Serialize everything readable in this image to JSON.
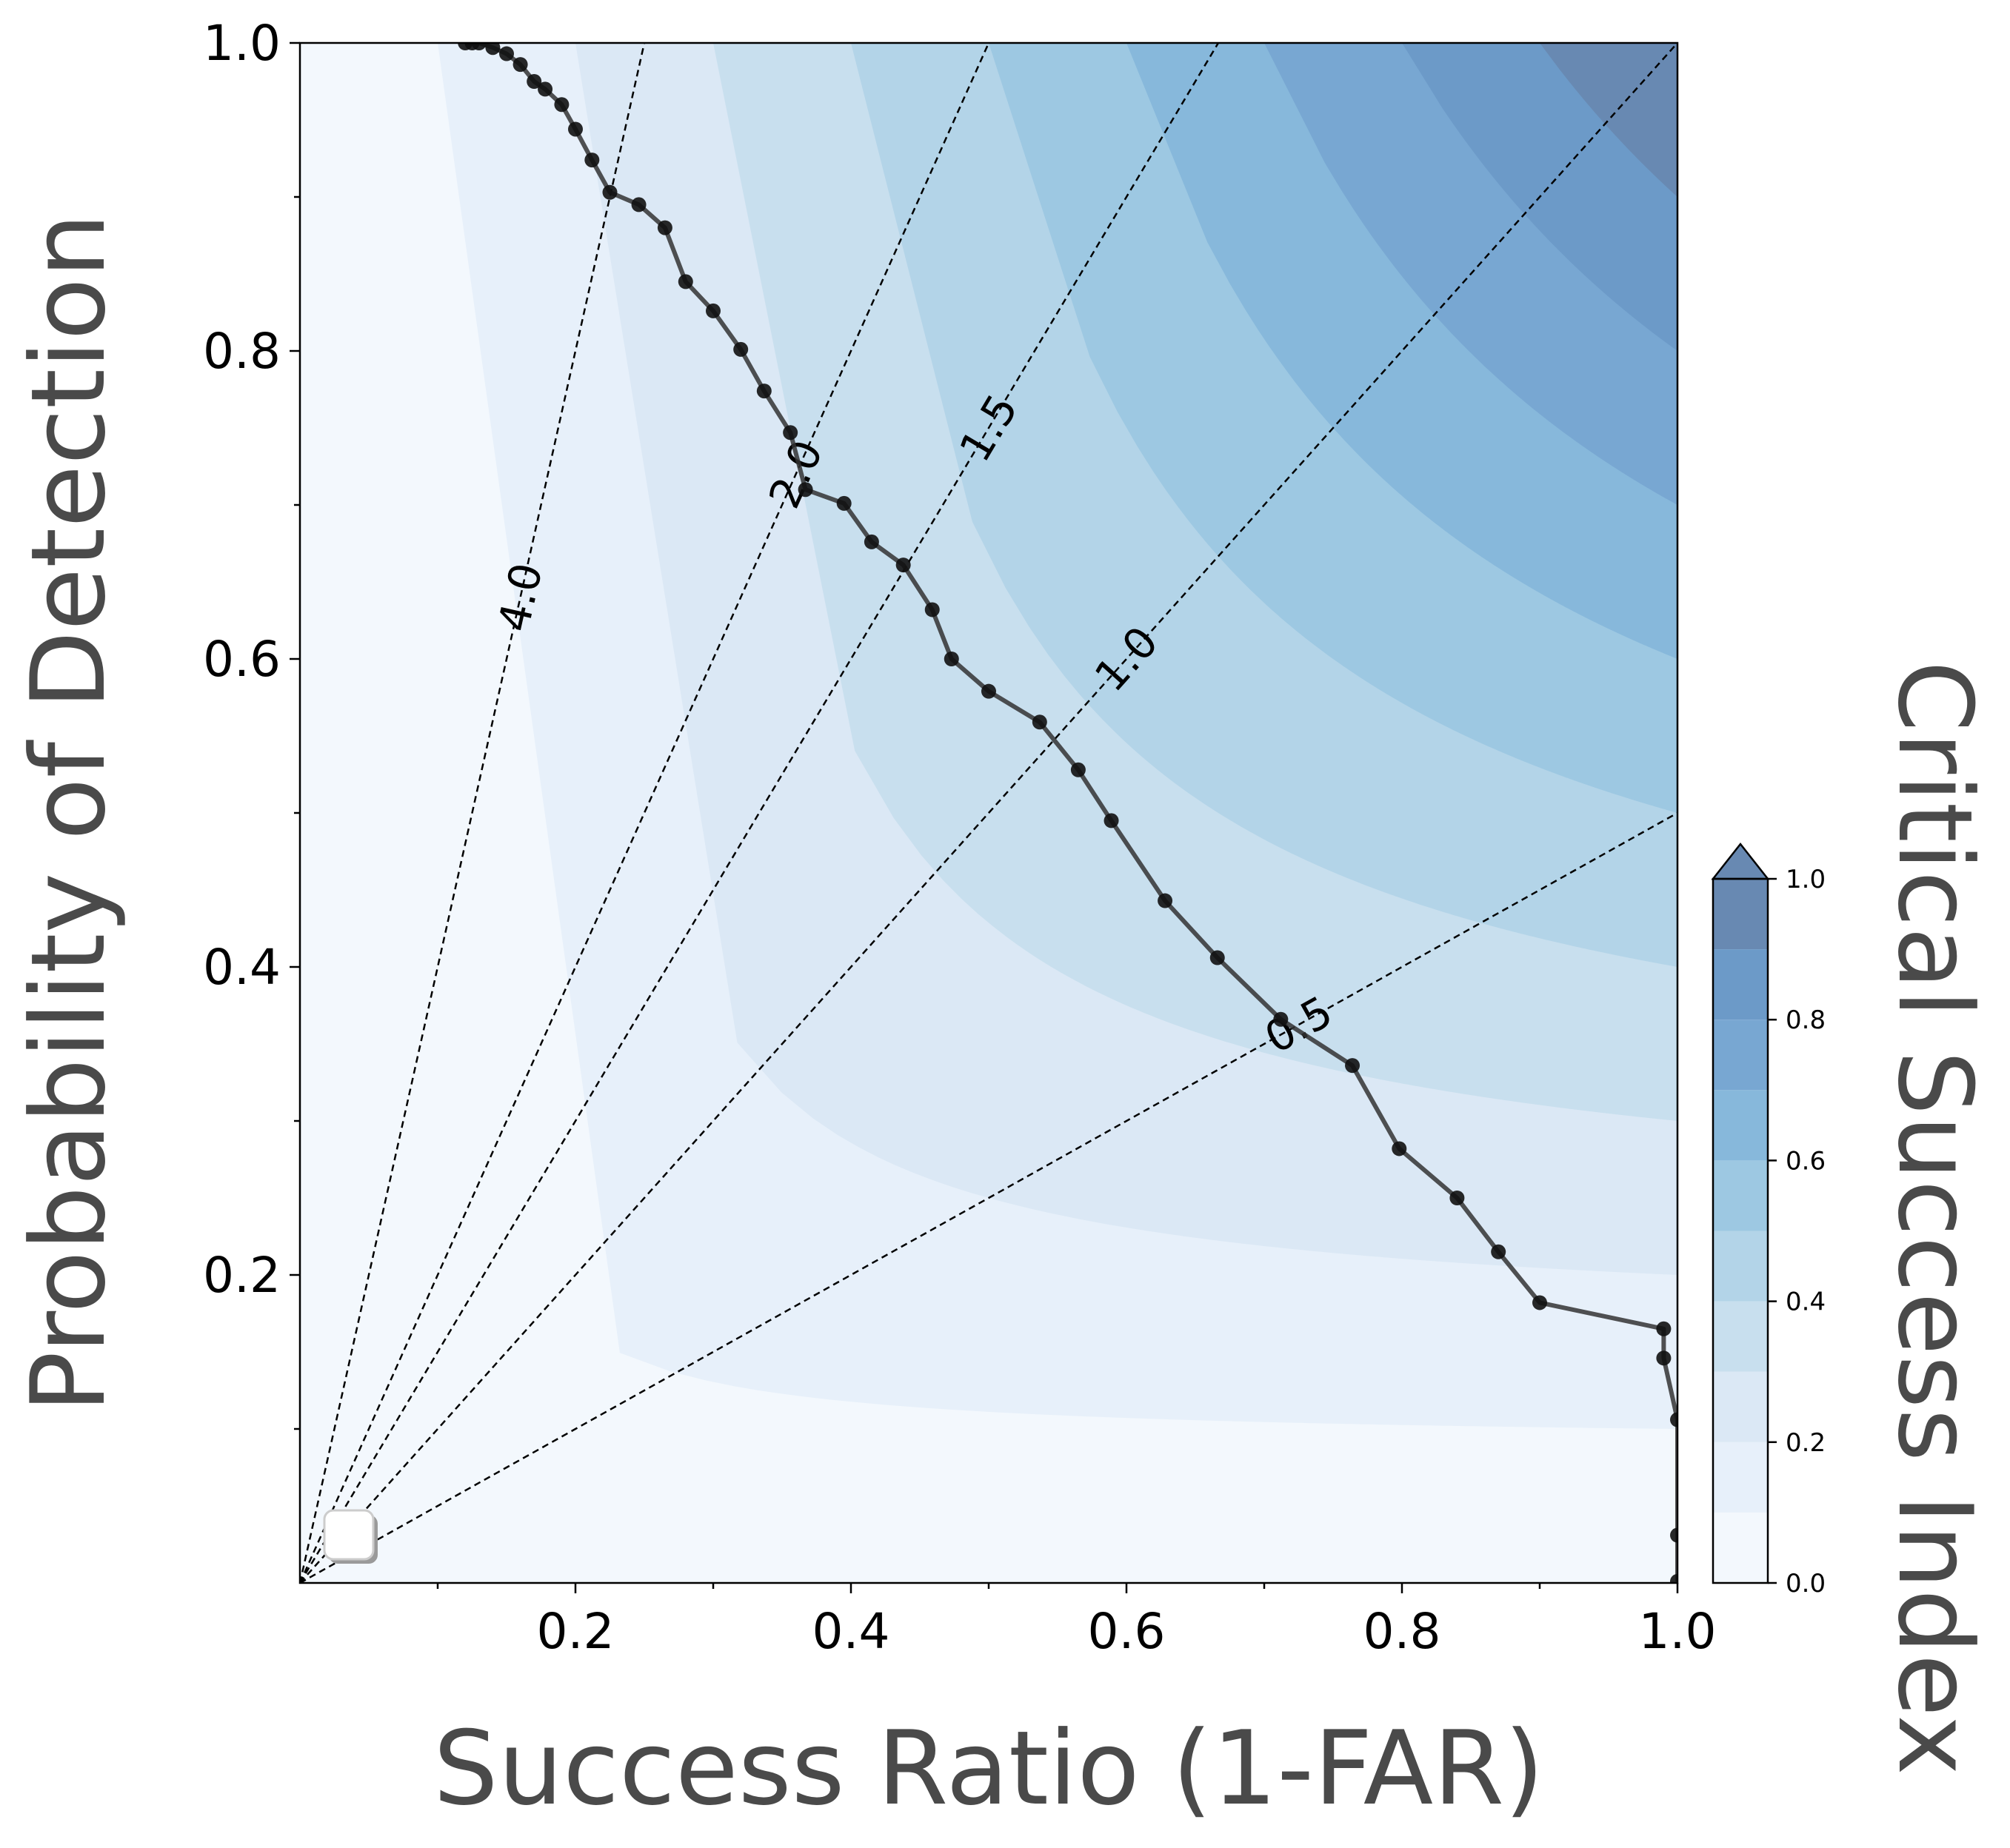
{
  "chart_data": {
    "type": "line",
    "plot_kind": "performance-diagram",
    "xlabel": "Success Ratio (1-FAR)",
    "ylabel": "Probability of Detection",
    "colorbar_label": "Critical Success Index",
    "xlim": [
      0,
      1
    ],
    "ylim": [
      0,
      1
    ],
    "x_ticks": [
      0.2,
      0.4,
      0.6,
      0.8,
      1.0
    ],
    "x_tick_labels": [
      "0.2",
      "0.4",
      "0.6",
      "0.8",
      "1.0"
    ],
    "y_ticks": [
      0.2,
      0.4,
      0.6,
      0.8,
      1.0
    ],
    "y_tick_labels": [
      "0.2",
      "0.4",
      "0.6",
      "0.8",
      "1.0"
    ],
    "grid": false,
    "csi_levels": [
      0.0,
      0.1,
      0.2,
      0.3,
      0.4,
      0.5,
      0.6,
      0.7,
      0.8,
      0.9,
      1.0
    ],
    "csi_colors": [
      "#f3f8fd",
      "#e7f0fa",
      "#dbe8f5",
      "#c8dfee",
      "#b3d4e8",
      "#9dc8e2",
      "#87b8db",
      "#78a7d2",
      "#6c9ac8",
      "#6889b2"
    ],
    "colorbar_ticks": [
      0.0,
      0.2,
      0.4,
      0.6,
      0.8,
      1.0
    ],
    "colorbar_tick_labels": [
      "0.0",
      "0.2",
      "0.4",
      "0.6",
      "0.8",
      "1.0"
    ],
    "bias_lines": [
      {
        "bias": 4.0,
        "label": "4.0",
        "label_x": 0.16
      },
      {
        "bias": 2.0,
        "label": "2.0",
        "label_x": 0.36
      },
      {
        "bias": 1.5,
        "label": "1.5",
        "label_x": 0.5
      },
      {
        "bias": 1.0,
        "label": "1.0",
        "label_x": 0.6
      },
      {
        "bias": 0.5,
        "label": "0.5",
        "label_x": 0.725
      }
    ],
    "series": [
      {
        "x": [
          0.12,
          0.125,
          0.13,
          0.14,
          0.15,
          0.16,
          0.17,
          0.178,
          0.19,
          0.2,
          0.212,
          0.225,
          0.246,
          0.265,
          0.28,
          0.3,
          0.32,
          0.337,
          0.356,
          0.367,
          0.395,
          0.415,
          0.438,
          0.459,
          0.473,
          0.5,
          0.537,
          0.565,
          0.589,
          0.628,
          0.666,
          0.712,
          0.764,
          0.798,
          0.84,
          0.87,
          0.9,
          0.99,
          0.99,
          1.0,
          1.0,
          1.0
        ],
        "y": [
          1.0,
          1.0,
          1.0,
          0.997,
          0.993,
          0.986,
          0.975,
          0.97,
          0.96,
          0.944,
          0.924,
          0.903,
          0.895,
          0.88,
          0.845,
          0.826,
          0.801,
          0.774,
          0.747,
          0.71,
          0.701,
          0.676,
          0.661,
          0.632,
          0.6,
          0.579,
          0.559,
          0.528,
          0.495,
          0.443,
          0.406,
          0.366,
          0.336,
          0.282,
          0.25,
          0.215,
          0.182,
          0.165,
          0.146,
          0.106,
          0.031,
          0.001
        ]
      }
    ],
    "line_color": "#333333",
    "marker_color": "#111111",
    "legend": {
      "placement": "lower-left",
      "entries": []
    }
  }
}
